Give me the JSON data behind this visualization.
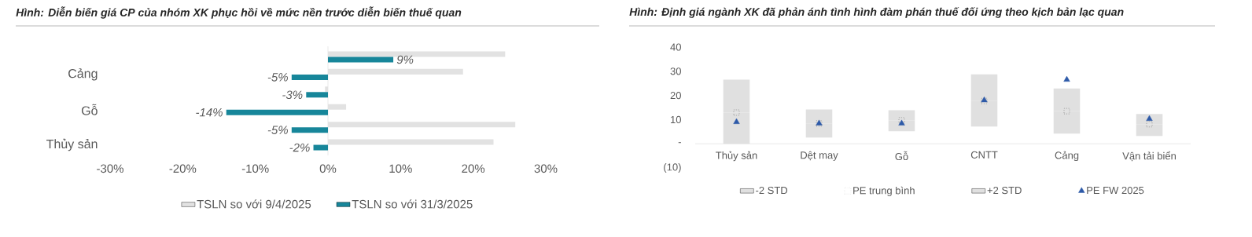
{
  "chart_data": [
    {
      "type": "bar",
      "orientation": "horizontal",
      "title": "Hình: Diễn biến giá CP của nhóm XK phục hồi về mức nền trước diễn biến thuế quan",
      "categories": [
        null,
        "Cảng",
        null,
        "Gỗ",
        null,
        "Thủy sản"
      ],
      "series": [
        {
          "name": "TSLN so với 9/4/2025",
          "color": "#e2e2e2",
          "values": [
            24.4,
            18.6,
            -0.4,
            2.5,
            25.8,
            22.8
          ]
        },
        {
          "name": "TSLN so với 31/3/2025",
          "color": "#17869a",
          "values": [
            9,
            -5,
            -3,
            -14,
            -5,
            -2
          ],
          "value_labels": [
            "9%",
            "-5%",
            "-3%",
            "-14%",
            "-5%",
            "-2%"
          ]
        }
      ],
      "xlim": [
        -30,
        30
      ],
      "xticks": [
        {
          "value": -30,
          "label": "-30%"
        },
        {
          "value": -20,
          "label": "-20%"
        },
        {
          "value": -10,
          "label": "-10%"
        },
        {
          "value": 0,
          "label": "0%"
        },
        {
          "value": 10,
          "label": "10%"
        },
        {
          "value": 20,
          "label": "20%"
        },
        {
          "value": 30,
          "label": "30%"
        }
      ],
      "legend": "bottom"
    },
    {
      "type": "bar",
      "title": "Hình: Định giá ngành XK đã phản ánh tình hình đàm phán thuế đối ứng theo kịch bản lạc quan",
      "categories": [
        "Thủy sản",
        "Dệt may",
        "Gỗ",
        "CNTT",
        "Cảng",
        "Vận tải biển"
      ],
      "series": [
        {
          "name": "-2 STD",
          "color": "#e0e0e0",
          "base": [
            0,
            2.6,
            5.2,
            7.1,
            4.2,
            3.2
          ],
          "values": [
            12.9,
            5.8,
            4.5,
            10.6,
            9.3,
            4.9
          ]
        },
        {
          "name": "PE trung bình",
          "type": "scatter",
          "color": "#8c8c8c",
          "marker": "square",
          "line_style": "dotted",
          "values": [
            12.9,
            8.4,
            9.7,
            17.7,
            13.5,
            8.1
          ]
        },
        {
          "name": "+2 STD",
          "color": "#e0e0e0",
          "base": [
            12.9,
            8.4,
            9.7,
            17.7,
            13.5,
            8.1
          ],
          "values": [
            13.6,
            5.8,
            4.2,
            11.0,
            9.4,
            4.2
          ]
        },
        {
          "name": "PE FW 2025",
          "type": "scatter",
          "marker": "triangle",
          "color": "#2e5aa8",
          "values": [
            9.0,
            8.4,
            8.4,
            18.0,
            26.5,
            10.3
          ]
        }
      ],
      "ylim": [
        -10,
        40
      ],
      "yticks": [
        {
          "value": -10,
          "label": "(10)"
        },
        {
          "value": 0,
          "label": "-"
        },
        10,
        20,
        30,
        40
      ],
      "legend": "bottom"
    }
  ]
}
